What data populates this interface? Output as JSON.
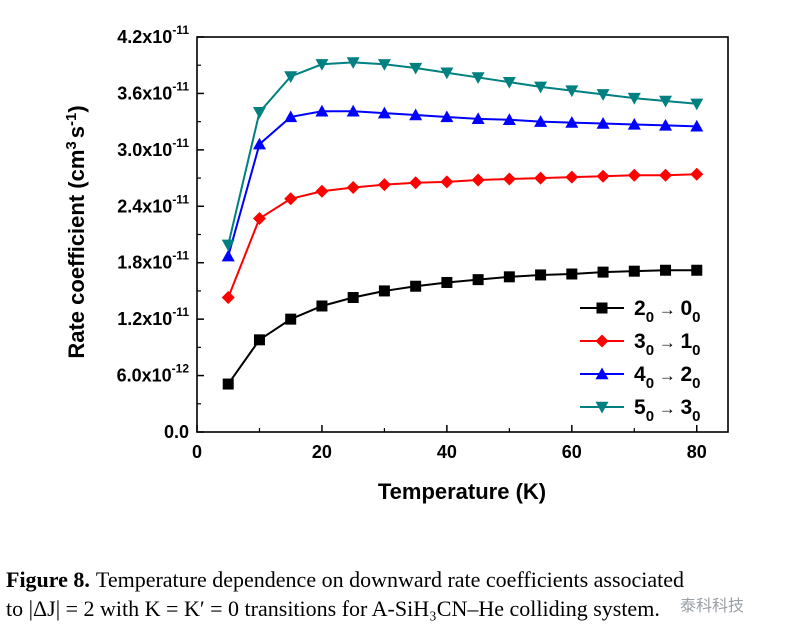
{
  "chart_data": {
    "type": "line",
    "xlabel": "Temperature (K)",
    "ylabel_main": "Rate coefficient (cm",
    "ylabel_sup1": "3",
    "ylabel_mid": "s",
    "ylabel_sup2": "-1",
    "ylabel_end": ")",
    "xlim": [
      0,
      85
    ],
    "ylim": [
      0,
      4.2e-11
    ],
    "xticks": [
      0,
      20,
      40,
      60,
      80
    ],
    "xtick_labels": [
      "0",
      "20",
      "40",
      "60",
      "80"
    ],
    "yticks": [
      0,
      6e-12,
      1.2e-11,
      1.8e-11,
      2.4e-11,
      3e-11,
      3.6e-11,
      4.2e-11
    ],
    "ytick_labels": [
      {
        "mant": "0.0",
        "exp": ""
      },
      {
        "mant": "6.0x10",
        "exp": "-12"
      },
      {
        "mant": "1.2x10",
        "exp": "-11"
      },
      {
        "mant": "1.8x10",
        "exp": "-11"
      },
      {
        "mant": "2.4x10",
        "exp": "-11"
      },
      {
        "mant": "3.0x10",
        "exp": "-11"
      },
      {
        "mant": "3.6x10",
        "exp": "-11"
      },
      {
        "mant": "4.2x10",
        "exp": "-11"
      }
    ],
    "legend_position": "bottom-right",
    "x": [
      5,
      10,
      15,
      20,
      25,
      30,
      35,
      40,
      45,
      50,
      55,
      60,
      65,
      70,
      75,
      80
    ],
    "series": [
      {
        "name_j": "2",
        "name_k": "0",
        "name_j2": "0",
        "name_k2": "0",
        "color": "#000000",
        "marker": "square",
        "values": [
          5.1e-12,
          9.8e-12,
          1.2e-11,
          1.34e-11,
          1.43e-11,
          1.5e-11,
          1.55e-11,
          1.59e-11,
          1.62e-11,
          1.65e-11,
          1.67e-11,
          1.68e-11,
          1.7e-11,
          1.71e-11,
          1.72e-11,
          1.72e-11
        ]
      },
      {
        "name_j": "3",
        "name_k": "0",
        "name_j2": "1",
        "name_k2": "0",
        "color": "#ff0000",
        "marker": "diamond",
        "values": [
          1.43e-11,
          2.27e-11,
          2.48e-11,
          2.56e-11,
          2.6e-11,
          2.63e-11,
          2.65e-11,
          2.66e-11,
          2.68e-11,
          2.69e-11,
          2.7e-11,
          2.71e-11,
          2.72e-11,
          2.73e-11,
          2.73e-11,
          2.74e-11
        ]
      },
      {
        "name_j": "4",
        "name_k": "0",
        "name_j2": "2",
        "name_k2": "0",
        "color": "#0000ff",
        "marker": "triangle-up",
        "values": [
          1.87e-11,
          3.06e-11,
          3.35e-11,
          3.41e-11,
          3.41e-11,
          3.39e-11,
          3.37e-11,
          3.35e-11,
          3.33e-11,
          3.32e-11,
          3.3e-11,
          3.29e-11,
          3.28e-11,
          3.27e-11,
          3.26e-11,
          3.25e-11
        ]
      },
      {
        "name_j": "5",
        "name_k": "0",
        "name_j2": "3",
        "name_k2": "0",
        "color": "#008080",
        "marker": "triangle-down",
        "values": [
          1.99e-11,
          3.4e-11,
          3.78e-11,
          3.91e-11,
          3.93e-11,
          3.91e-11,
          3.87e-11,
          3.82e-11,
          3.77e-11,
          3.72e-11,
          3.67e-11,
          3.63e-11,
          3.59e-11,
          3.55e-11,
          3.52e-11,
          3.49e-11
        ]
      }
    ]
  },
  "caption": {
    "label": "Figure 8.",
    "text_line1": "Temperature dependence on downward rate coefficients associated",
    "text_line2": "to |ΔJ| = 2 with K = K′ = 0 transitions for A-SiH₃CN–He colliding system."
  },
  "watermark": "泰科科技"
}
